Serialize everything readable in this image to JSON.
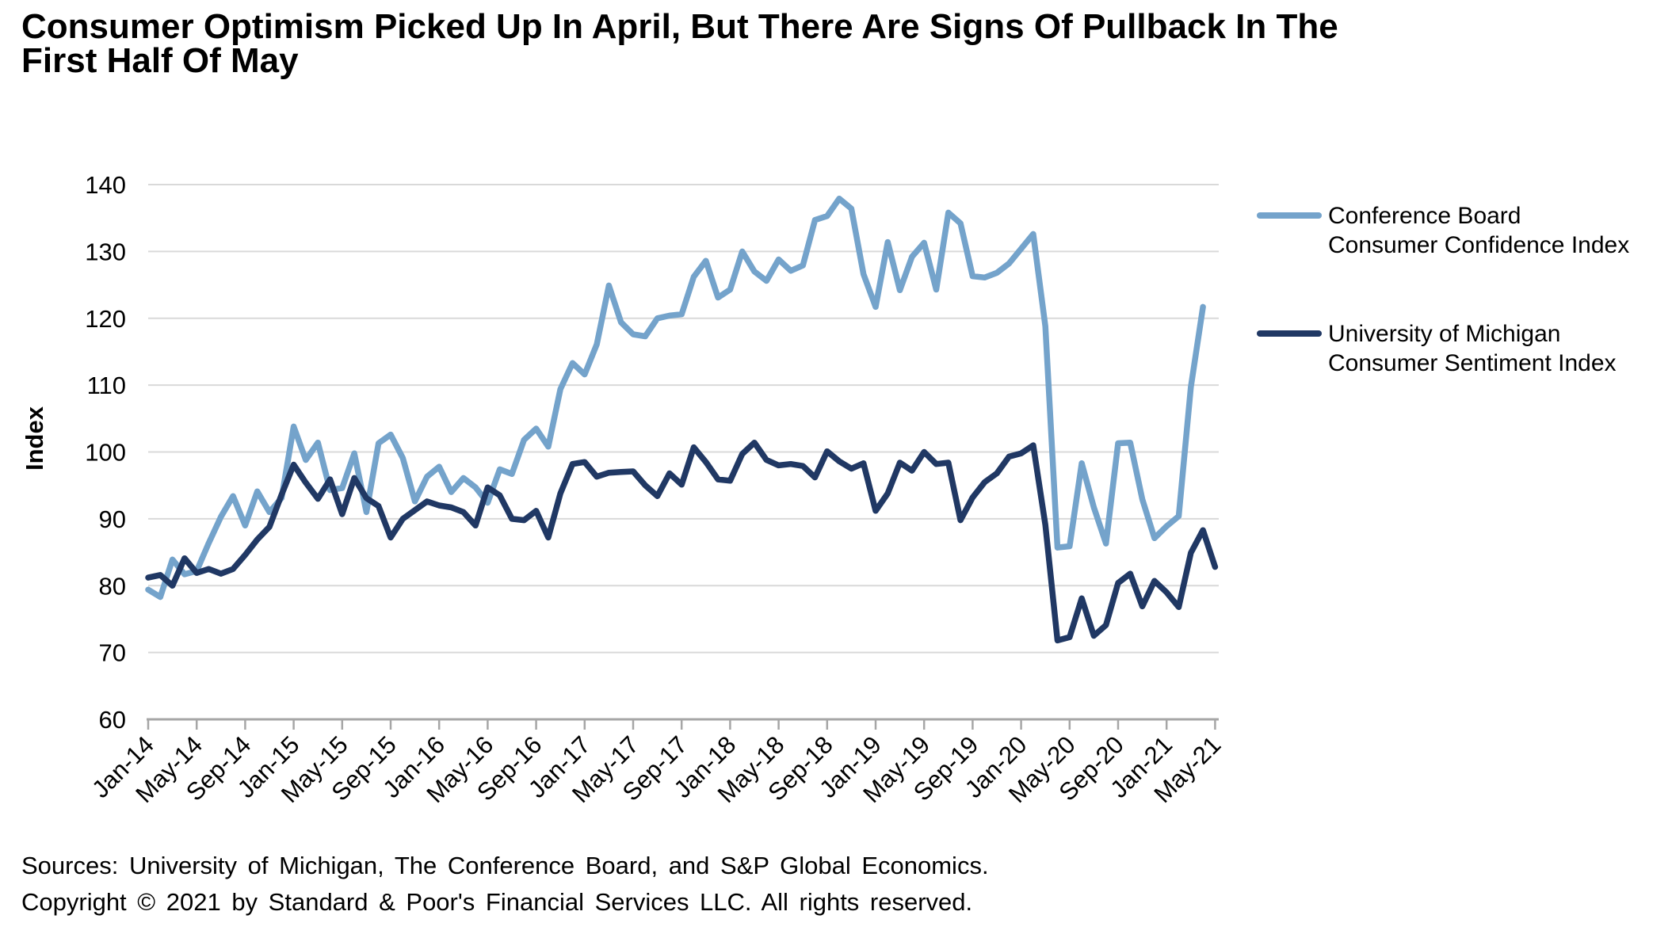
{
  "title_lines": [
    "Consumer Optimism Picked Up In April, But There Are Signs Of Pullback In The",
    "First Half Of May"
  ],
  "footer": {
    "sources": "Sources: University of Michigan, The Conference Board, and S&P Global Economics.",
    "copyright": "Copyright © 2021 by Standard & Poor's Financial Services LLC. All rights reserved."
  },
  "legend": [
    {
      "label_lines": [
        "Conference Board",
        "Consumer Confidence Index"
      ],
      "color": "#74A3CB"
    },
    {
      "label_lines": [
        "University of Michigan",
        "Consumer Sentiment Index"
      ],
      "color": "#203864"
    }
  ],
  "colors": {
    "grid": "#D9D9D9",
    "axis": "#A6A6A6",
    "text": "#000000"
  },
  "chart_data": {
    "type": "line",
    "title": "Consumer Optimism Picked Up In April, But There Are Signs Of Pullback In The First Half Of May",
    "xlabel": "",
    "ylabel": "Index",
    "ylim": [
      60,
      140
    ],
    "ytick_step": 10,
    "grid": true,
    "legend_position": "right",
    "x_tick_every": 4,
    "x_tick_labels": [
      "Jan-14",
      "May-14",
      "Sep-14",
      "Jan-15",
      "May-15",
      "Sep-15",
      "Jan-16",
      "May-16",
      "Sep-16",
      "Jan-17",
      "May-17",
      "Sep-17",
      "Jan-18",
      "May-18",
      "Sep-18",
      "Jan-19",
      "May-19",
      "Sep-19",
      "Jan-20",
      "May-20",
      "Sep-20",
      "Jan-21",
      "May-21"
    ],
    "series": [
      {
        "name": "Conference Board Consumer Confidence Index",
        "color": "#74A3CB",
        "values": [
          79.4,
          78.3,
          83.9,
          81.7,
          82.2,
          86.4,
          90.3,
          93.4,
          89.0,
          94.1,
          91.0,
          93.1,
          103.8,
          98.8,
          101.4,
          94.3,
          94.6,
          99.8,
          91.0,
          101.3,
          102.6,
          99.1,
          92.6,
          96.3,
          97.8,
          94.0,
          96.1,
          94.7,
          92.4,
          97.4,
          96.7,
          101.8,
          103.5,
          100.8,
          109.4,
          113.3,
          111.6,
          116.1,
          124.9,
          119.4,
          117.6,
          117.3,
          120.0,
          120.4,
          120.6,
          126.2,
          128.6,
          123.1,
          124.3,
          130.0,
          127.0,
          125.6,
          128.8,
          127.1,
          127.9,
          134.7,
          135.3,
          137.9,
          136.4,
          126.6,
          121.7,
          131.4,
          124.2,
          129.2,
          131.3,
          124.3,
          135.8,
          134.2,
          126.3,
          126.1,
          126.8,
          128.2,
          130.4,
          132.6,
          118.8,
          85.7,
          85.9,
          98.3,
          91.7,
          86.3,
          101.3,
          101.4,
          92.9,
          87.1,
          88.9,
          90.4,
          109.7,
          121.7
        ]
      },
      {
        "name": "University of Michigan Consumer Sentiment Index",
        "color": "#203864",
        "values": [
          81.2,
          81.6,
          80.0,
          84.1,
          81.9,
          82.5,
          81.8,
          82.5,
          84.6,
          86.9,
          88.8,
          93.6,
          98.1,
          95.4,
          93.0,
          95.9,
          90.7,
          96.1,
          93.1,
          91.9,
          87.2,
          90.0,
          91.3,
          92.6,
          92.0,
          91.7,
          91.0,
          89.0,
          94.7,
          93.5,
          90.0,
          89.8,
          91.2,
          87.2,
          93.8,
          98.2,
          98.5,
          96.3,
          96.9,
          97.0,
          97.1,
          95.0,
          93.4,
          96.8,
          95.1,
          100.7,
          98.5,
          95.9,
          95.7,
          99.7,
          101.4,
          98.8,
          98.0,
          98.2,
          97.9,
          96.2,
          100.1,
          98.6,
          97.5,
          98.3,
          91.2,
          93.8,
          98.4,
          97.2,
          100.0,
          98.2,
          98.4,
          89.8,
          93.2,
          95.5,
          96.8,
          99.3,
          99.8,
          101.0,
          89.1,
          71.8,
          72.3,
          78.1,
          72.5,
          74.1,
          80.4,
          81.8,
          76.9,
          80.7,
          79.0,
          76.8,
          84.9,
          88.3,
          82.8
        ]
      }
    ]
  }
}
